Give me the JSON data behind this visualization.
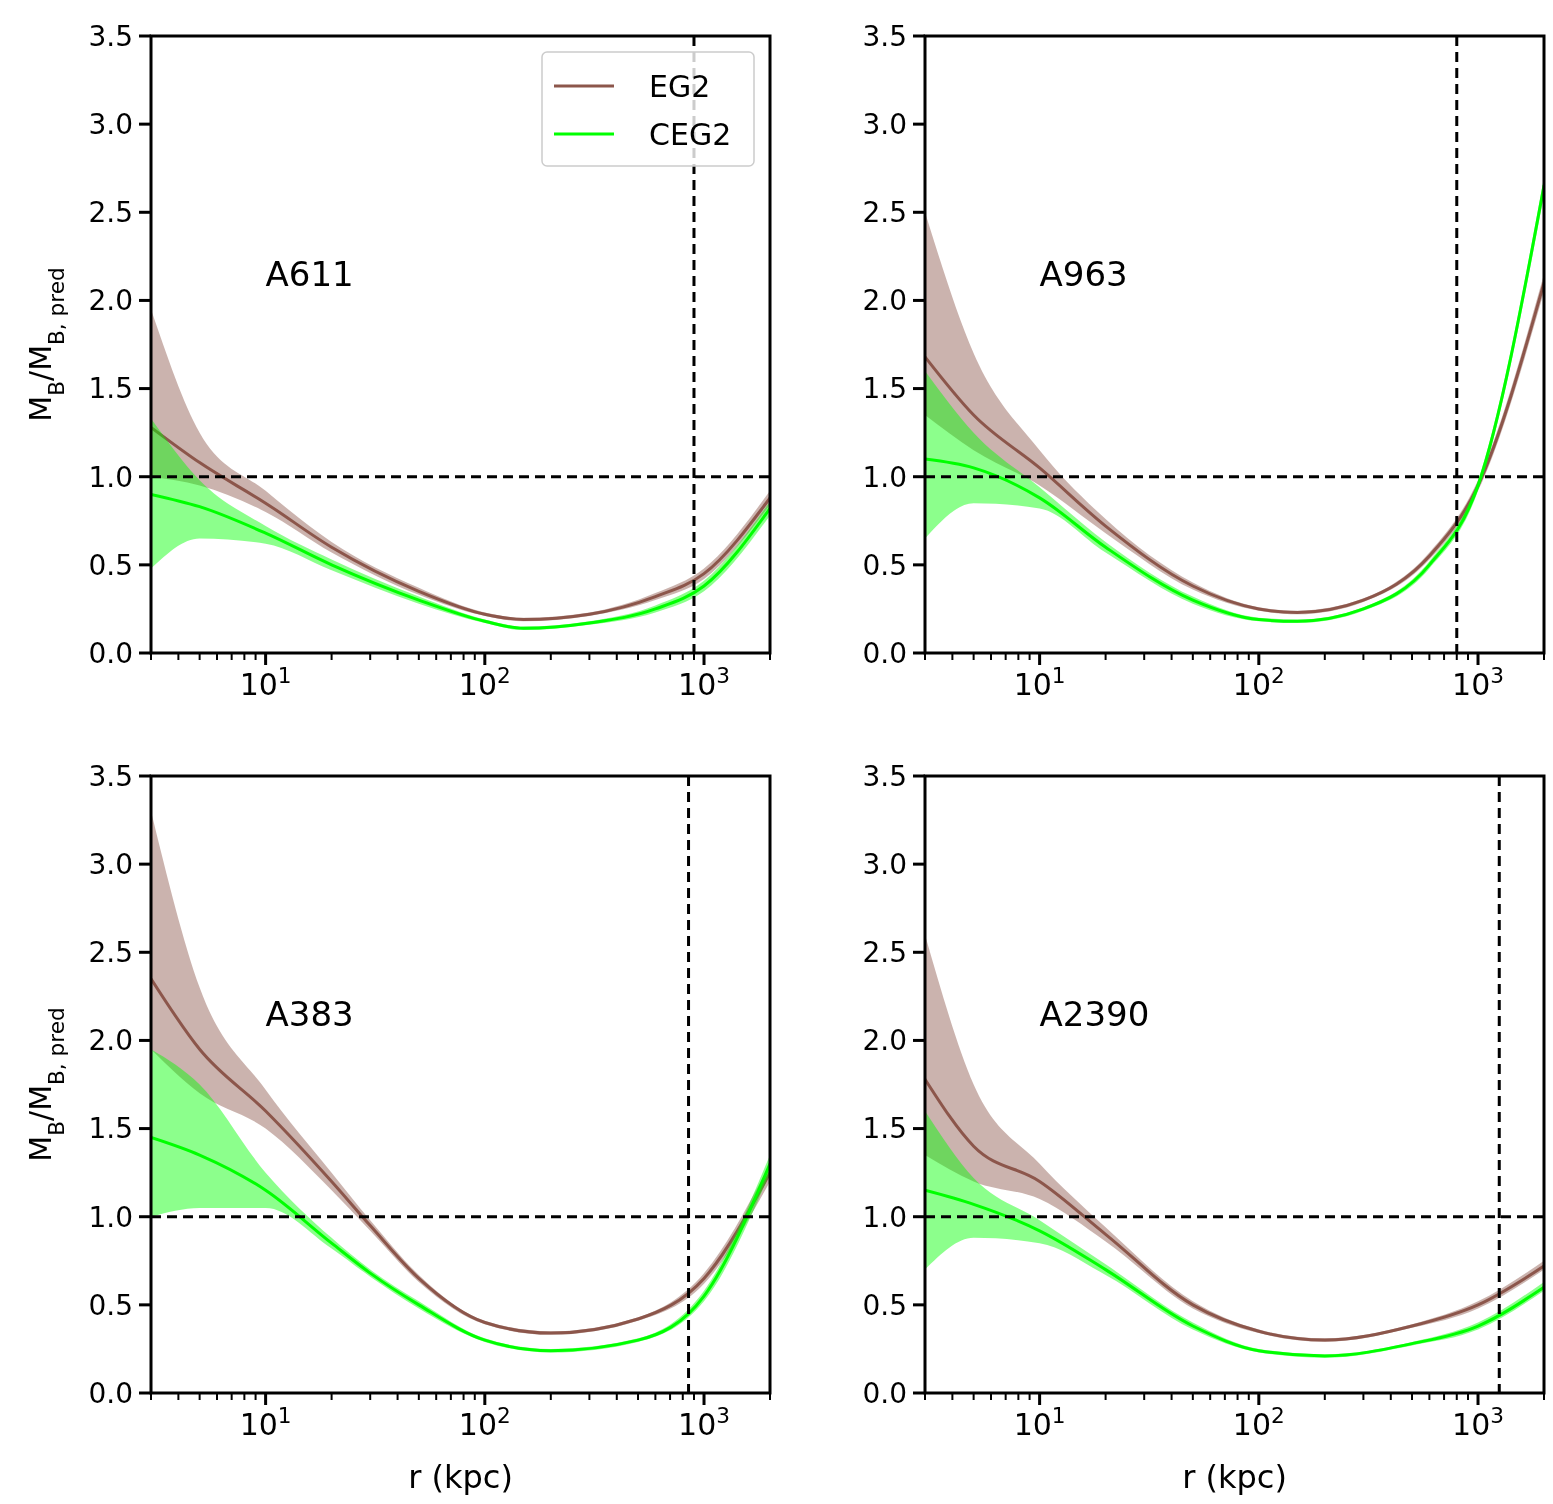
{
  "chart_data": [
    {
      "type": "line",
      "ylabel": "M$_{B}$/M$_{B, pred}$",
      "log": "x",
      "xlim": [
        3,
        2000
      ],
      "ylim": [
        0,
        3.5
      ],
      "legend": "top right",
      "line_style": "solid",
      "marker": "none",
      "grid": false,
      "xticks": [
        {
          "value": 3,
          "label": null
        },
        {
          "value": 4,
          "label": null
        },
        {
          "value": 5,
          "label": null
        },
        {
          "value": 6,
          "label": null
        },
        {
          "value": 7,
          "label": null
        },
        {
          "value": 8,
          "label": null
        },
        {
          "value": 9,
          "label": null
        },
        {
          "value": 10,
          "label": "10$^{1}$"
        },
        {
          "value": 20,
          "label": null
        },
        {
          "value": 30,
          "label": null
        },
        {
          "value": 40,
          "label": null
        },
        {
          "value": 50,
          "label": null
        },
        {
          "value": 60,
          "label": null
        },
        {
          "value": 70,
          "label": null
        },
        {
          "value": 80,
          "label": null
        },
        {
          "value": 90,
          "label": null
        },
        {
          "value": 100,
          "label": "10$^{2}$"
        },
        {
          "value": 200,
          "label": null
        },
        {
          "value": 300,
          "label": null
        },
        {
          "value": 400,
          "label": null
        },
        {
          "value": 500,
          "label": null
        },
        {
          "value": 600,
          "label": null
        },
        {
          "value": 700,
          "label": null
        },
        {
          "value": 800,
          "label": null
        },
        {
          "value": 900,
          "label": null
        },
        {
          "value": 1000,
          "label": "10$^{3}$"
        },
        {
          "value": 2000,
          "label": null
        }
      ],
      "yticks": [
        {
          "value": 0,
          "label": "0.0"
        },
        {
          "value": 0.5,
          "label": "0.5"
        },
        {
          "value": 1,
          "label": "1.0"
        },
        {
          "value": 1.5,
          "label": "1.5"
        },
        {
          "value": 2,
          "label": "2.0"
        },
        {
          "value": 2.5,
          "label": "2.5"
        },
        {
          "value": 3,
          "label": "3.0"
        },
        {
          "value": 3.5,
          "label": "3.5"
        }
      ],
      "x": [
        3,
        5,
        10,
        20,
        50,
        100,
        150,
        300,
        600,
        1000,
        2000
      ],
      "series": [
        {
          "name": "EG2",
          "color": "#8c564b",
          "values": [
            1.28,
            1.08,
            0.85,
            0.6,
            0.35,
            0.22,
            0.19,
            0.22,
            0.32,
            0.45,
            0.88
          ],
          "lower": [
            1.0,
            0.95,
            0.8,
            0.57,
            0.33,
            0.21,
            0.18,
            0.21,
            0.3,
            0.42,
            0.84
          ],
          "upper": [
            1.95,
            1.25,
            0.92,
            0.63,
            0.37,
            0.23,
            0.2,
            0.23,
            0.34,
            0.48,
            0.92
          ]
        },
        {
          "name": "CEG2",
          "color": "#00ff00",
          "values": [
            0.9,
            0.83,
            0.68,
            0.5,
            0.3,
            0.18,
            0.14,
            0.17,
            0.25,
            0.38,
            0.82
          ],
          "lower": [
            0.48,
            0.65,
            0.62,
            0.47,
            0.28,
            0.17,
            0.13,
            0.16,
            0.23,
            0.35,
            0.78
          ],
          "upper": [
            1.33,
            0.98,
            0.72,
            0.53,
            0.32,
            0.19,
            0.15,
            0.18,
            0.27,
            0.41,
            0.86
          ]
        }
      ],
      "ref_lines": [
        {
          "axis": "y",
          "value": 1,
          "line_style": "dashed",
          "color": "#000000"
        },
        {
          "axis": "x",
          "value": 900,
          "line_style": "dashed",
          "color": "#000000"
        }
      ],
      "annotations": [
        "A611"
      ]
    },
    {
      "type": "line",
      "log": "x",
      "xlim": [
        3,
        2000
      ],
      "ylim": [
        0,
        3.5
      ],
      "line_style": "solid",
      "marker": "none",
      "grid": false,
      "xticks": [
        {
          "value": 3,
          "label": null
        },
        {
          "value": 4,
          "label": null
        },
        {
          "value": 5,
          "label": null
        },
        {
          "value": 6,
          "label": null
        },
        {
          "value": 7,
          "label": null
        },
        {
          "value": 8,
          "label": null
        },
        {
          "value": 9,
          "label": null
        },
        {
          "value": 10,
          "label": "10$^{1}$"
        },
        {
          "value": 20,
          "label": null
        },
        {
          "value": 30,
          "label": null
        },
        {
          "value": 40,
          "label": null
        },
        {
          "value": 50,
          "label": null
        },
        {
          "value": 60,
          "label": null
        },
        {
          "value": 70,
          "label": null
        },
        {
          "value": 80,
          "label": null
        },
        {
          "value": 90,
          "label": null
        },
        {
          "value": 100,
          "label": "10$^{2}$"
        },
        {
          "value": 200,
          "label": null
        },
        {
          "value": 300,
          "label": null
        },
        {
          "value": 400,
          "label": null
        },
        {
          "value": 500,
          "label": null
        },
        {
          "value": 600,
          "label": null
        },
        {
          "value": 700,
          "label": null
        },
        {
          "value": 800,
          "label": null
        },
        {
          "value": 900,
          "label": null
        },
        {
          "value": 1000,
          "label": "10$^{3}$"
        },
        {
          "value": 2000,
          "label": null
        }
      ],
      "yticks": [
        {
          "value": 0,
          "label": "0.0"
        },
        {
          "value": 0.5,
          "label": "0.5"
        },
        {
          "value": 1,
          "label": "1.0"
        },
        {
          "value": 1.5,
          "label": "1.5"
        },
        {
          "value": 2,
          "label": "2.0"
        },
        {
          "value": 2.5,
          "label": "2.5"
        },
        {
          "value": 3,
          "label": "3.0"
        },
        {
          "value": 3.5,
          "label": "3.5"
        }
      ],
      "x": [
        3,
        5,
        10,
        20,
        50,
        100,
        150,
        300,
        600,
        1000,
        2000
      ],
      "series": [
        {
          "color": "#8c564b",
          "values": [
            1.68,
            1.35,
            1.05,
            0.72,
            0.38,
            0.25,
            0.23,
            0.3,
            0.55,
            0.95,
            2.1
          ],
          "lower": [
            1.35,
            1.15,
            0.95,
            0.68,
            0.36,
            0.24,
            0.22,
            0.29,
            0.53,
            0.92,
            2.05
          ],
          "upper": [
            2.5,
            1.7,
            1.15,
            0.76,
            0.4,
            0.26,
            0.24,
            0.31,
            0.57,
            0.98,
            2.15
          ]
        },
        {
          "color": "#00ff00",
          "values": [
            1.1,
            1.05,
            0.88,
            0.6,
            0.3,
            0.19,
            0.18,
            0.25,
            0.5,
            0.95,
            2.65
          ],
          "lower": [
            0.65,
            0.85,
            0.82,
            0.57,
            0.28,
            0.18,
            0.17,
            0.24,
            0.48,
            0.92,
            2.6
          ],
          "upper": [
            1.6,
            1.25,
            0.94,
            0.63,
            0.32,
            0.2,
            0.19,
            0.26,
            0.52,
            0.98,
            2.7
          ]
        }
      ],
      "ref_lines": [
        {
          "axis": "y",
          "value": 1,
          "line_style": "dashed",
          "color": "#000000"
        },
        {
          "axis": "x",
          "value": 800,
          "line_style": "dashed",
          "color": "#000000"
        }
      ],
      "annotations": [
        "A963"
      ]
    },
    {
      "type": "line",
      "xlabel": "r (kpc)",
      "ylabel": "M$_{B}$/M$_{B, pred}$",
      "log": "x",
      "xlim": [
        3,
        2000
      ],
      "ylim": [
        0,
        3.5
      ],
      "line_style": "solid",
      "marker": "none",
      "grid": false,
      "xticks": [
        {
          "value": 3,
          "label": null
        },
        {
          "value": 4,
          "label": null
        },
        {
          "value": 5,
          "label": null
        },
        {
          "value": 6,
          "label": null
        },
        {
          "value": 7,
          "label": null
        },
        {
          "value": 8,
          "label": null
        },
        {
          "value": 9,
          "label": null
        },
        {
          "value": 10,
          "label": "10$^{1}$"
        },
        {
          "value": 20,
          "label": null
        },
        {
          "value": 30,
          "label": null
        },
        {
          "value": 40,
          "label": null
        },
        {
          "value": 50,
          "label": null
        },
        {
          "value": 60,
          "label": null
        },
        {
          "value": 70,
          "label": null
        },
        {
          "value": 80,
          "label": null
        },
        {
          "value": 90,
          "label": null
        },
        {
          "value": 100,
          "label": "10$^{2}$"
        },
        {
          "value": 200,
          "label": null
        },
        {
          "value": 300,
          "label": null
        },
        {
          "value": 400,
          "label": null
        },
        {
          "value": 500,
          "label": null
        },
        {
          "value": 600,
          "label": null
        },
        {
          "value": 700,
          "label": null
        },
        {
          "value": 800,
          "label": null
        },
        {
          "value": 900,
          "label": null
        },
        {
          "value": 1000,
          "label": "10$^{3}$"
        },
        {
          "value": 2000,
          "label": null
        }
      ],
      "yticks": [
        {
          "value": 0,
          "label": "0.0"
        },
        {
          "value": 0.5,
          "label": "0.5"
        },
        {
          "value": 1,
          "label": "1.0"
        },
        {
          "value": 1.5,
          "label": "1.5"
        },
        {
          "value": 2,
          "label": "2.0"
        },
        {
          "value": 2.5,
          "label": "2.5"
        },
        {
          "value": 3,
          "label": "3.0"
        },
        {
          "value": 3.5,
          "label": "3.5"
        }
      ],
      "x": [
        3,
        5,
        10,
        20,
        30,
        50,
        100,
        200,
        500,
        1000,
        2000
      ],
      "series": [
        {
          "color": "#8c564b",
          "values": [
            2.35,
            1.95,
            1.6,
            1.2,
            0.95,
            0.65,
            0.4,
            0.34,
            0.42,
            0.65,
            1.25
          ],
          "lower": [
            1.95,
            1.7,
            1.5,
            1.15,
            0.92,
            0.63,
            0.39,
            0.33,
            0.41,
            0.62,
            1.2
          ],
          "upper": [
            3.3,
            2.3,
            1.72,
            1.25,
            0.98,
            0.67,
            0.41,
            0.35,
            0.43,
            0.68,
            1.3
          ]
        },
        {
          "color": "#00ff00",
          "values": [
            1.45,
            1.35,
            1.15,
            0.85,
            0.68,
            0.5,
            0.3,
            0.24,
            0.3,
            0.55,
            1.3
          ],
          "lower": [
            1.0,
            1.05,
            1.05,
            0.82,
            0.66,
            0.48,
            0.29,
            0.23,
            0.29,
            0.52,
            1.25
          ],
          "upper": [
            1.95,
            1.75,
            1.25,
            0.88,
            0.7,
            0.52,
            0.31,
            0.25,
            0.31,
            0.58,
            1.35
          ]
        }
      ],
      "ref_lines": [
        {
          "axis": "y",
          "value": 1,
          "line_style": "dashed",
          "color": "#000000"
        },
        {
          "axis": "x",
          "value": 850,
          "line_style": "dashed",
          "color": "#000000"
        }
      ],
      "annotations": [
        "A383"
      ]
    },
    {
      "type": "line",
      "xlabel": "r (kpc)",
      "log": "x",
      "xlim": [
        3,
        2000
      ],
      "ylim": [
        0,
        3.5
      ],
      "line_style": "solid",
      "marker": "none",
      "grid": false,
      "xticks": [
        {
          "value": 3,
          "label": null
        },
        {
          "value": 4,
          "label": null
        },
        {
          "value": 5,
          "label": null
        },
        {
          "value": 6,
          "label": null
        },
        {
          "value": 7,
          "label": null
        },
        {
          "value": 8,
          "label": null
        },
        {
          "value": 9,
          "label": null
        },
        {
          "value": 10,
          "label": "10$^{1}$"
        },
        {
          "value": 20,
          "label": null
        },
        {
          "value": 30,
          "label": null
        },
        {
          "value": 40,
          "label": null
        },
        {
          "value": 50,
          "label": null
        },
        {
          "value": 60,
          "label": null
        },
        {
          "value": 70,
          "label": null
        },
        {
          "value": 80,
          "label": null
        },
        {
          "value": 90,
          "label": null
        },
        {
          "value": 100,
          "label": "10$^{2}$"
        },
        {
          "value": 200,
          "label": null
        },
        {
          "value": 300,
          "label": null
        },
        {
          "value": 400,
          "label": null
        },
        {
          "value": 500,
          "label": null
        },
        {
          "value": 600,
          "label": null
        },
        {
          "value": 700,
          "label": null
        },
        {
          "value": 800,
          "label": null
        },
        {
          "value": 900,
          "label": null
        },
        {
          "value": 1000,
          "label": "10$^{3}$"
        },
        {
          "value": 2000,
          "label": null
        }
      ],
      "yticks": [
        {
          "value": 0,
          "label": "0.0"
        },
        {
          "value": 0.5,
          "label": "0.5"
        },
        {
          "value": 1,
          "label": "1.0"
        },
        {
          "value": 1.5,
          "label": "1.5"
        },
        {
          "value": 2,
          "label": "2.0"
        },
        {
          "value": 2.5,
          "label": "2.5"
        },
        {
          "value": 3,
          "label": "3.0"
        },
        {
          "value": 3.5,
          "label": "3.5"
        }
      ],
      "x": [
        3,
        5,
        10,
        20,
        50,
        100,
        200,
        500,
        1000,
        2000
      ],
      "series": [
        {
          "color": "#8c564b",
          "values": [
            1.78,
            1.4,
            1.2,
            0.9,
            0.5,
            0.35,
            0.3,
            0.38,
            0.5,
            0.72
          ],
          "lower": [
            1.35,
            1.2,
            1.1,
            0.86,
            0.48,
            0.34,
            0.29,
            0.37,
            0.48,
            0.7
          ],
          "upper": [
            2.6,
            1.75,
            1.3,
            0.94,
            0.52,
            0.36,
            0.31,
            0.39,
            0.52,
            0.75
          ]
        },
        {
          "color": "#00ff00",
          "values": [
            1.15,
            1.07,
            0.92,
            0.7,
            0.38,
            0.24,
            0.21,
            0.28,
            0.38,
            0.6
          ],
          "lower": [
            0.7,
            0.88,
            0.85,
            0.67,
            0.36,
            0.23,
            0.2,
            0.27,
            0.36,
            0.58
          ],
          "upper": [
            1.6,
            1.22,
            0.98,
            0.73,
            0.4,
            0.25,
            0.22,
            0.29,
            0.4,
            0.63
          ]
        }
      ],
      "ref_lines": [
        {
          "axis": "y",
          "value": 1,
          "line_style": "dashed",
          "color": "#000000"
        },
        {
          "axis": "x",
          "value": 1250,
          "line_style": "dashed",
          "color": "#000000"
        }
      ],
      "annotations": [
        "A2390"
      ]
    }
  ]
}
